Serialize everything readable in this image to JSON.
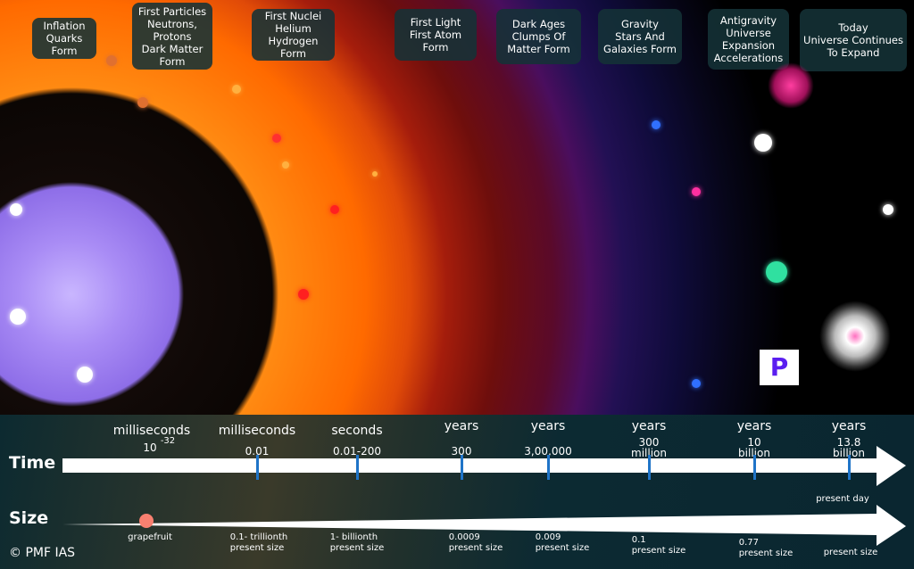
{
  "stages": [
    "Inflation\nQuarks Form",
    "First Particles\nNeutrons,\nProtons\nDark Matter\nForm",
    "First Nuclei\nHelium\nHydrogen Form",
    "First Light\nFirst  Atom\nForm",
    "Dark Ages\nClumps Of\nMatter Form",
    "Gravity\nStars And\nGalaxies Form",
    "Antigravity\nUniverse\nExpansion\nAccelerations",
    "Today\nUniverse Continues\nTo Expand"
  ],
  "time": {
    "label": "Time",
    "marks": [
      {
        "unit": "milliseconds",
        "value": "10",
        "exp": "-32"
      },
      {
        "unit": "milliseconds",
        "value": "0.01"
      },
      {
        "unit": "seconds",
        "value": "0.01-200"
      },
      {
        "unit": "years",
        "value": "300"
      },
      {
        "unit": "years",
        "value": "3,00,000"
      },
      {
        "unit": "years",
        "value": "300\nmillion"
      },
      {
        "unit": "years",
        "value": "10\nbillion"
      },
      {
        "unit": "years",
        "value": "13.8\nbillion"
      }
    ],
    "present_day": "present day"
  },
  "size": {
    "label": "Size",
    "marks": [
      "grapefruit",
      "0.1- trillionth\npresent size",
      "1- billionth\npresent size",
      "0.0009\npresent size",
      "0.009\npresent size",
      "0.1\npresent size",
      "0.77\npresent size",
      "present size"
    ]
  },
  "logo": {
    "mark": "P",
    "copyright": "© PMF IAS"
  },
  "colors": {
    "tick": "#1f74c8",
    "panel": "#0c2a30"
  }
}
